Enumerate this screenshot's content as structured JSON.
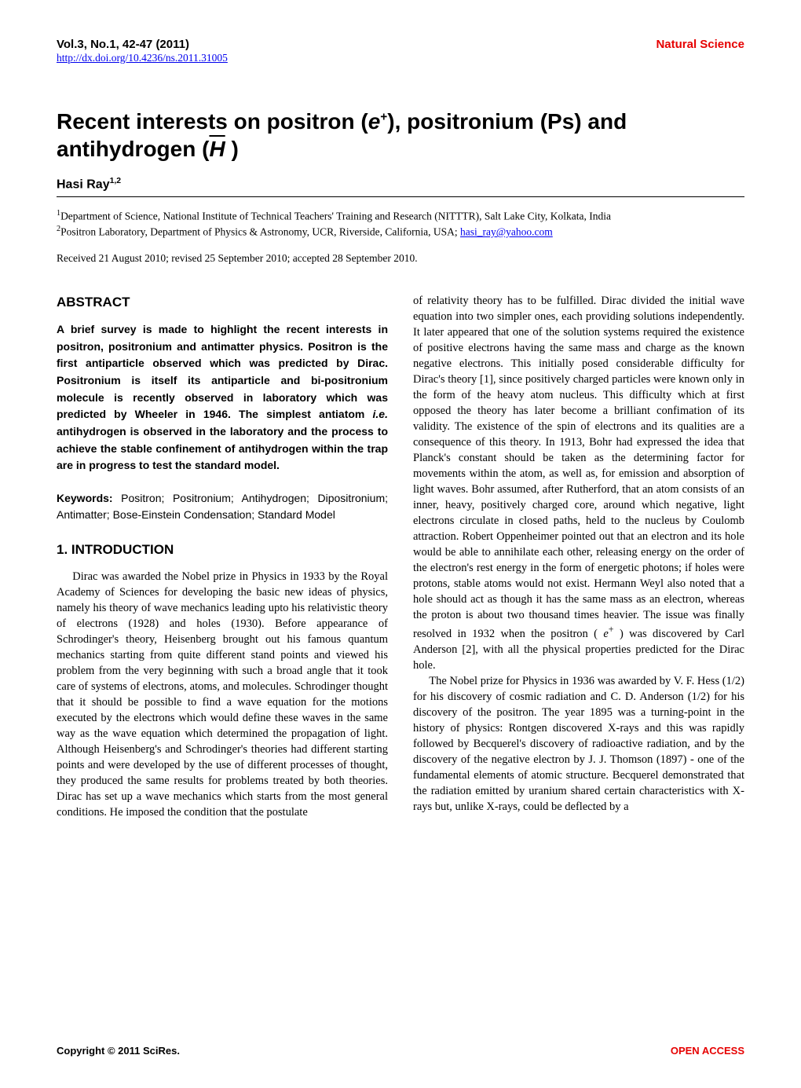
{
  "colors": {
    "accent_red": "#e60000",
    "link_blue": "#0000ee",
    "text": "#000000",
    "background": "#ffffff"
  },
  "typography": {
    "body_font": "Times New Roman",
    "sans_font": "Arial",
    "title_size_pt": 21,
    "author_size_pt": 12,
    "heading_size_pt": 13,
    "body_size_pt": 11,
    "abstract_size_pt": 10.5
  },
  "header": {
    "vol_issue": "Vol.3, No.1, 42-47 (2011)",
    "journal": "Natural Science",
    "doi": "http://dx.doi.org/10.4236/ns.2011.31005"
  },
  "title": {
    "pre": "Recent interests on positron (",
    "e_sym": "e",
    "e_sup": "+",
    "mid": "), positronium (Ps) and antihydrogen (",
    "H_sym": "H",
    "post": " )"
  },
  "author": {
    "name": "Hasi Ray",
    "sup": "1,2"
  },
  "affiliations": {
    "line1_sup": "1",
    "line1": "Department of Science, National Institute of Technical Teachers' Training and Research (NITTTR), Salt Lake City, Kolkata, India",
    "line2_sup": "2",
    "line2_pre": "Positron Laboratory, Department of Physics & Astronomy, UCR, Riverside, California, USA; ",
    "email": "hasi_ray@yahoo.com"
  },
  "received": "Received 21 August 2010; revised 25 September 2010; accepted 28 September 2010.",
  "abstract": {
    "heading": "ABSTRACT",
    "text_pre": "A brief survey is made to highlight the recent interests in positron, positronium and antimatter physics. Positron is the first antiparticle observed which was predicted by Dirac. Positronium is itself its antiparticle and bi-positronium molecule is recently observed in laboratory which was predicted by Wheeler in 1946. The simplest antiatom ",
    "ie": "i.e.",
    "text_post": " antihydrogen is observed in the laboratory and the process to achieve the stable confinement of antihydrogen within the trap are in progress to test the standard model."
  },
  "keywords": {
    "label": "Keywords:",
    "text": " Positron; Positronium; Antihydrogen; Dipositronium; Antimatter; Bose-Einstein Condensation; Standard Model"
  },
  "section1": {
    "heading": "1. INTRODUCTION",
    "para1": "Dirac was awarded the Nobel prize in Physics in 1933 by the Royal Academy of Sciences for developing the basic new ideas of physics, namely his theory of wave mechanics leading upto his relativistic theory of electrons (1928) and holes (1930). Before appearance of Schrodinger's theory, Heisenberg brought out his famous quantum mechanics starting from quite different stand points and viewed his problem from the very beginning with such a broad angle that it took care of systems of electrons, atoms, and molecules. Schrodinger thought that it should be possible to find a wave equation for the motions executed by the electrons which would define these waves in the same way as the wave equation which determined the propagation of light. Although Heisenberg's and Schrodinger's theories had different starting points and were developed by the use of different processes of thought, they produced the same results for problems treated by both theories. Dirac has set up a wave mechanics which starts from the most general conditions. He imposed the condition that the postulate",
    "para2_pre": "of relativity theory has to be fulfilled. Dirac divided the initial wave equation into two simpler ones, each providing solutions independently. It later appeared that one of the solution systems required the existence of positive electrons having the same mass and charge as the known negative electrons. This initially posed considerable difficulty for Dirac's theory [1], since positively charged particles were known only in the form of the heavy atom nucleus. This difficulty which at first opposed the theory has later become a brilliant confimation of its validity. The existence of the spin of electrons and its qualities are a consequence of this theory. In 1913, Bohr had expressed the idea that Planck's constant should be taken as the determining factor for movements within the atom, as well as, for emission and absorption of light waves. Bohr assumed, after Rutherford, that an atom consists of an inner, heavy, positively charged core, around which negative, light electrons circulate in closed paths, held to the nucleus by Coulomb attraction. Robert Oppenheimer pointed out that an electron and its hole would be able to annihilate each other, releasing energy on the order of the electron's rest energy in the form of energetic photons; if holes were protons, stable atoms would not exist. Hermann Weyl also noted that a hole should act as though it has the same mass as an electron, whereas the proton is about two thousand times heavier. The issue was finally resolved in 1932 when the positron ( ",
    "e_sym": "e",
    "para2_post": " ) was discovered by Carl Anderson [2], with all the physical properties predicted for the Dirac hole.",
    "para3": "The Nobel prize for Physics in 1936 was awarded by V. F. Hess (1/2) for his discovery of cosmic radiation and C. D. Anderson (1/2) for his discovery of the positron. The year 1895 was a turning-point in the history of physics: Rontgen discovered X-rays and this was rapidly followed by Becquerel's discovery of radioactive radiation, and by the discovery of the negative electron by J. J. Thomson (1897) - one of the fundamental elements of atomic structure. Becquerel demonstrated that the radiation emitted by uranium shared certain characteristics with X-rays but, unlike X-rays, could be deflected by a"
  },
  "footer": {
    "left": "Copyright © 2011 SciRes.",
    "right": "OPEN ACCESS"
  }
}
